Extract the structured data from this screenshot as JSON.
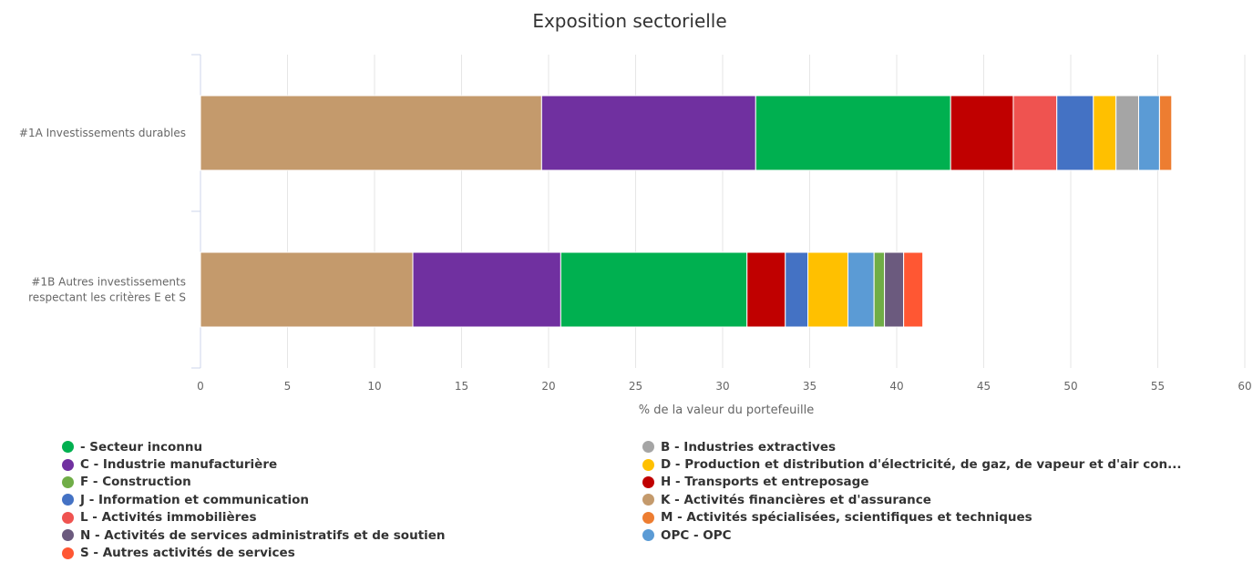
{
  "chart_data": {
    "type": "bar",
    "orientation": "horizontal",
    "stacked": true,
    "title": "Exposition sectorielle",
    "xlabel": "% de la valeur du portefeuille",
    "xlim": [
      0,
      60
    ],
    "xticks": [
      "0",
      "5",
      "10",
      "15",
      "20",
      "25",
      "30",
      "35",
      "40",
      "45",
      "50",
      "55",
      "60"
    ],
    "grid": true,
    "legend_position": "bottom",
    "categories": [
      "#1A Investissements durables",
      "#1B Autres investissements respectant les critères E et S"
    ],
    "series": [
      {
        "name": "K - Activités financières et d'assurance",
        "color": "#c49a6c",
        "values": [
          19.6,
          12.2
        ]
      },
      {
        "name": "C - Industrie manufacturière",
        "color": "#7030a0",
        "values": [
          12.3,
          8.5
        ]
      },
      {
        "name": " - Secteur inconnu",
        "color": "#00b050",
        "values": [
          11.2,
          10.7
        ]
      },
      {
        "name": "H - Transports et entreposage",
        "color": "#c00000",
        "values": [
          3.6,
          2.2
        ]
      },
      {
        "name": "L - Activités immobilières",
        "color": "#ef5350",
        "values": [
          2.5,
          0
        ]
      },
      {
        "name": "J - Information et communication",
        "color": "#4472c4",
        "values": [
          2.1,
          1.3
        ]
      },
      {
        "name": "D - Production et distribution d'électricité, de gaz, de vapeur et d'air con...",
        "color": "#ffc000",
        "values": [
          1.3,
          2.3
        ]
      },
      {
        "name": "B - Industries extractives",
        "color": "#a5a5a5",
        "values": [
          1.3,
          0
        ]
      },
      {
        "name": "OPC - OPC",
        "color": "#5b9bd5",
        "values": [
          1.2,
          1.5
        ]
      },
      {
        "name": "F - Construction",
        "color": "#70ad47",
        "values": [
          0,
          0.6
        ]
      },
      {
        "name": "N - Activités de services administratifs et de soutien",
        "color": "#6b5a7e",
        "values": [
          0,
          1.1
        ]
      },
      {
        "name": "S - Autres activités de services",
        "color": "#ff5733",
        "values": [
          0,
          1.1
        ]
      },
      {
        "name": "M - Activités spécialisées, scientifiques et techniques",
        "color": "#ed7d31",
        "values": [
          0.7,
          0
        ]
      }
    ]
  },
  "legend": {
    "left": [
      {
        "label": " - Secteur inconnu",
        "color": "#00b050"
      },
      {
        "label": "C - Industrie manufacturière",
        "color": "#7030a0"
      },
      {
        "label": "F - Construction",
        "color": "#70ad47"
      },
      {
        "label": "J - Information et communication",
        "color": "#4472c4"
      },
      {
        "label": "L - Activités immobilières",
        "color": "#ef5350"
      },
      {
        "label": "N - Activités de services administratifs et de soutien",
        "color": "#6b5a7e"
      },
      {
        "label": "S - Autres activités de services",
        "color": "#ff5733"
      }
    ],
    "right": [
      {
        "label": "B - Industries extractives",
        "color": "#a5a5a5"
      },
      {
        "label": "D - Production et distribution d'électricité, de gaz, de vapeur et d'air con...",
        "color": "#ffc000"
      },
      {
        "label": "H - Transports et entreposage",
        "color": "#c00000"
      },
      {
        "label": "K - Activités financières et d'assurance",
        "color": "#c49a6c"
      },
      {
        "label": "M - Activités spécialisées, scientifiques et techniques",
        "color": "#ed7d31"
      },
      {
        "label": "OPC - OPC",
        "color": "#5b9bd5"
      }
    ]
  }
}
